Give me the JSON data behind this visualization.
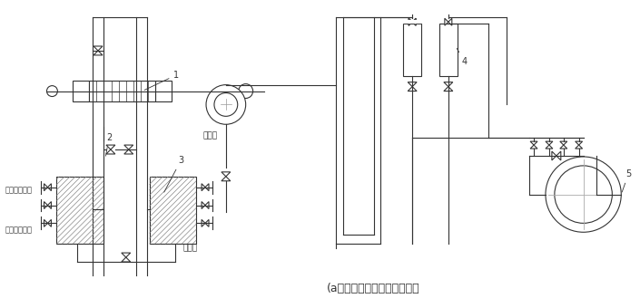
{
  "title": "(a）差压计装在节流装置下方",
  "line_color": "#333333",
  "bg_color": "#ffffff",
  "figsize": [
    7.05,
    3.4
  ],
  "dpi": 100,
  "text_labels": {
    "end_face": "隔离液终结面",
    "start_face": "隔离液起始面",
    "iso_liquid": "隔离液",
    "measured_liquid": "被测液"
  },
  "label_numbers": [
    "1",
    "2",
    "3",
    "4",
    "5"
  ]
}
